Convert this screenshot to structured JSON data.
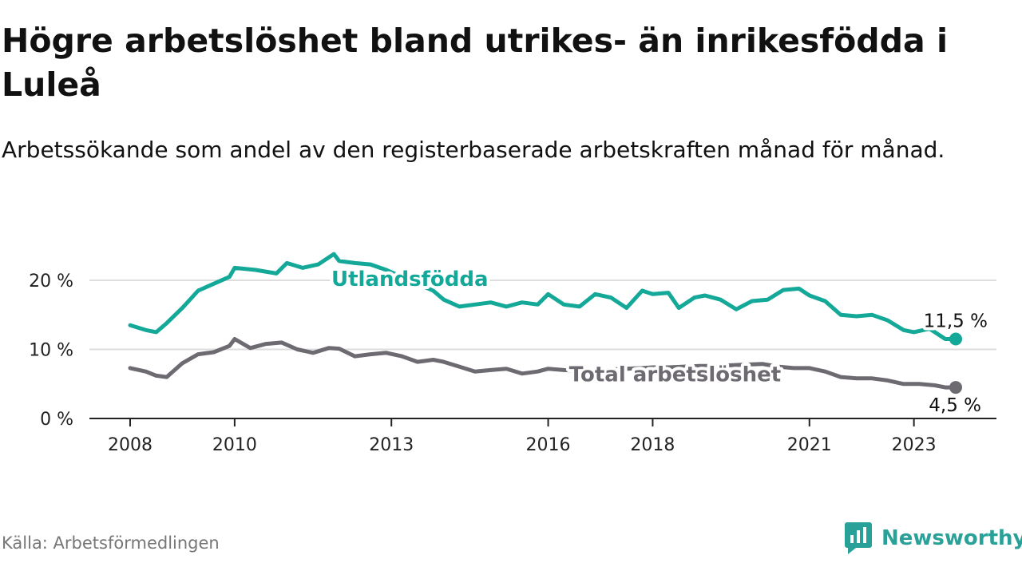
{
  "title": "Högre arbetslöshet bland utrikes- än inrikesfödda i Luleå",
  "subtitle": "Arbetssökande som andel av den registerbaserade arbetskraften månad för månad.",
  "source": "Källa: Arbetsförmedlingen",
  "brand": {
    "name": "Newsworthy",
    "icon": "bar-chart-logo-icon"
  },
  "colors": {
    "utlandsfodda": "#14a899",
    "total": "#6e6a72",
    "grid": "#dddddd",
    "axis": "#222222"
  },
  "chart_data": {
    "type": "line",
    "title": "Högre arbetslöshet bland utrikes- än inrikesfödda i Luleå",
    "xlabel": "",
    "ylabel": "",
    "xlim": [
      2008,
      2023.8
    ],
    "ylim": [
      0,
      20
    ],
    "y_ticks": [
      0,
      10,
      20
    ],
    "y_tick_labels": [
      "0 %",
      "10 %",
      "20 %"
    ],
    "x_ticks": [
      2008,
      2010,
      2013,
      2016,
      2018,
      2021,
      2023
    ],
    "x_tick_labels": [
      "2008",
      "2010",
      "2013",
      "2016",
      "2018",
      "2021",
      "2023"
    ],
    "series": [
      {
        "name": "Utlandsfödda",
        "label": "Utlandsfödda",
        "color": "#14a899",
        "end_label": "11,5 %",
        "end_value": 11.5,
        "x": [
          2008.0,
          2008.3,
          2008.5,
          2008.7,
          2009.0,
          2009.3,
          2009.6,
          2009.9,
          2010.0,
          2010.4,
          2010.8,
          2011.0,
          2011.3,
          2011.6,
          2011.9,
          2012.0,
          2012.3,
          2012.6,
          2012.9,
          2013.2,
          2013.5,
          2013.8,
          2014.0,
          2014.3,
          2014.6,
          2014.9,
          2015.2,
          2015.5,
          2015.8,
          2016.0,
          2016.3,
          2016.6,
          2016.9,
          2017.2,
          2017.5,
          2017.8,
          2018.0,
          2018.3,
          2018.5,
          2018.8,
          2019.0,
          2019.3,
          2019.6,
          2019.9,
          2020.2,
          2020.5,
          2020.8,
          2021.0,
          2021.3,
          2021.6,
          2021.9,
          2022.2,
          2022.5,
          2022.8,
          2023.0,
          2023.3,
          2023.6,
          2023.8
        ],
        "values": [
          13.5,
          12.8,
          12.5,
          13.8,
          16.0,
          18.5,
          19.5,
          20.5,
          21.8,
          21.5,
          21.0,
          22.5,
          21.8,
          22.3,
          23.8,
          22.8,
          22.5,
          22.3,
          21.5,
          20.5,
          19.5,
          18.5,
          17.2,
          16.2,
          16.5,
          16.8,
          16.2,
          16.8,
          16.5,
          18.0,
          16.5,
          16.2,
          18.0,
          17.5,
          16.0,
          18.5,
          18.0,
          18.2,
          16.0,
          17.5,
          17.8,
          17.2,
          15.8,
          17.0,
          17.2,
          18.6,
          18.8,
          17.8,
          17.0,
          15.0,
          14.8,
          15.0,
          14.2,
          12.8,
          12.5,
          13.0,
          11.5,
          11.5
        ]
      },
      {
        "name": "Total arbetslöshet",
        "label": "Total arbetslöshet",
        "color": "#6e6a72",
        "end_label": "4,5 %",
        "end_value": 4.5,
        "x": [
          2008.0,
          2008.3,
          2008.5,
          2008.7,
          2009.0,
          2009.3,
          2009.6,
          2009.9,
          2010.0,
          2010.3,
          2010.6,
          2010.9,
          2011.2,
          2011.5,
          2011.8,
          2012.0,
          2012.3,
          2012.6,
          2012.9,
          2013.2,
          2013.5,
          2013.8,
          2014.0,
          2014.3,
          2014.6,
          2014.9,
          2015.2,
          2015.5,
          2015.8,
          2016.0,
          2016.3,
          2016.6,
          2016.9,
          2017.2,
          2017.5,
          2017.8,
          2018.0,
          2018.3,
          2018.6,
          2018.9,
          2019.2,
          2019.5,
          2019.8,
          2020.1,
          2020.4,
          2020.7,
          2021.0,
          2021.3,
          2021.6,
          2021.9,
          2022.2,
          2022.5,
          2022.8,
          2023.1,
          2023.4,
          2023.6,
          2023.8
        ],
        "values": [
          7.3,
          6.8,
          6.2,
          6.0,
          8.0,
          9.3,
          9.6,
          10.5,
          11.5,
          10.2,
          10.8,
          11.0,
          10.0,
          9.5,
          10.2,
          10.1,
          9.0,
          9.3,
          9.5,
          9.0,
          8.2,
          8.5,
          8.2,
          7.5,
          6.8,
          7.0,
          7.2,
          6.5,
          6.8,
          7.2,
          7.0,
          6.9,
          7.0,
          7.1,
          7.2,
          7.3,
          7.4,
          7.4,
          7.5,
          7.6,
          7.6,
          7.7,
          7.8,
          7.9,
          7.5,
          7.3,
          7.3,
          6.8,
          6.0,
          5.8,
          5.8,
          5.5,
          5.0,
          5.0,
          4.8,
          4.5,
          4.5
        ]
      }
    ]
  }
}
